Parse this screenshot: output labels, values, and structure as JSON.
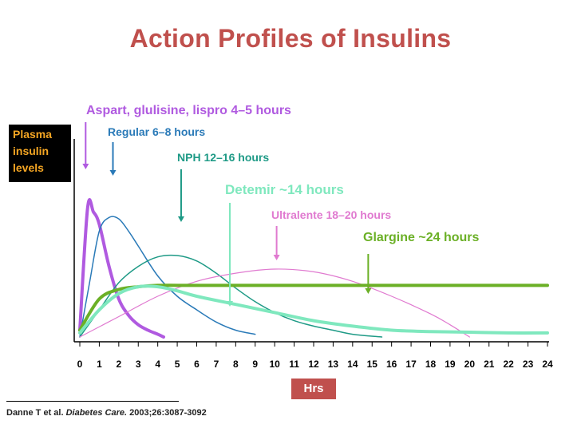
{
  "title": "Action Profiles of Insulins",
  "chart_data": {
    "type": "line",
    "title": "Action Profiles of Insulins",
    "ylabel_lines": [
      "Plasma",
      "insulin",
      "levels"
    ],
    "xlabel": "Hrs",
    "xlim": [
      0,
      24
    ],
    "ylim": [
      0,
      1
    ],
    "x_ticks": [
      "0",
      "1",
      "2",
      "3",
      "4",
      "5",
      "6",
      "7",
      "8",
      "9",
      "10",
      "11",
      "12",
      "13",
      "14",
      "15",
      "16",
      "17",
      "18",
      "19",
      "20",
      "21",
      "22",
      "23",
      "24"
    ],
    "grid": false,
    "series": [
      {
        "name": "Aspart, glulisine, lispro 4–5 hours",
        "color": "#b05ae0",
        "width": 4,
        "points": [
          [
            0,
            0.05
          ],
          [
            0.4,
            0.95
          ],
          [
            0.7,
            0.92
          ],
          [
            1,
            0.83
          ],
          [
            1.5,
            0.52
          ],
          [
            2,
            0.28
          ],
          [
            2.5,
            0.16
          ],
          [
            3,
            0.09
          ],
          [
            3.5,
            0.05
          ],
          [
            4,
            0.02
          ],
          [
            4.3,
            0
          ]
        ]
      },
      {
        "name": "Regular 6–8 hours",
        "color": "#2a7ab8",
        "width": 1.5,
        "points": [
          [
            0,
            0
          ],
          [
            0.5,
            0.4
          ],
          [
            1,
            0.78
          ],
          [
            1.5,
            0.88
          ],
          [
            2,
            0.87
          ],
          [
            2.5,
            0.78
          ],
          [
            3,
            0.67
          ],
          [
            4,
            0.45
          ],
          [
            5,
            0.3
          ],
          [
            6,
            0.2
          ],
          [
            7,
            0.11
          ],
          [
            8,
            0.05
          ],
          [
            9,
            0.02
          ]
        ]
      },
      {
        "name": "NPH 12–16 hours",
        "color": "#1e9a86",
        "width": 1.5,
        "points": [
          [
            0,
            0
          ],
          [
            1,
            0.2
          ],
          [
            2,
            0.4
          ],
          [
            3,
            0.52
          ],
          [
            4,
            0.59
          ],
          [
            5,
            0.6
          ],
          [
            6,
            0.56
          ],
          [
            7,
            0.47
          ],
          [
            8,
            0.36
          ],
          [
            9,
            0.26
          ],
          [
            10,
            0.18
          ],
          [
            11,
            0.12
          ],
          [
            12,
            0.08
          ],
          [
            13,
            0.05
          ],
          [
            14,
            0.02
          ],
          [
            15.5,
            0
          ]
        ]
      },
      {
        "name": "Ultralente 18–20 hours",
        "color": "#e07ad0",
        "width": 1.2,
        "points": [
          [
            0,
            0
          ],
          [
            2,
            0.15
          ],
          [
            4,
            0.3
          ],
          [
            6,
            0.41
          ],
          [
            8,
            0.47
          ],
          [
            10,
            0.5
          ],
          [
            12,
            0.48
          ],
          [
            14,
            0.41
          ],
          [
            16,
            0.3
          ],
          [
            18,
            0.17
          ],
          [
            19,
            0.09
          ],
          [
            20,
            0
          ]
        ]
      },
      {
        "name": "Glargine ~24 hours",
        "color": "#6bb026",
        "width": 4,
        "points": [
          [
            0,
            0.05
          ],
          [
            1,
            0.28
          ],
          [
            2,
            0.35
          ],
          [
            3,
            0.37
          ],
          [
            4,
            0.38
          ],
          [
            6,
            0.38
          ],
          [
            10,
            0.38
          ],
          [
            16,
            0.38
          ],
          [
            20,
            0.38
          ],
          [
            24,
            0.38
          ]
        ]
      },
      {
        "name": "Detemir ~14 hours",
        "color": "#7fe8be",
        "width": 4,
        "points": [
          [
            0,
            0.03
          ],
          [
            1,
            0.2
          ],
          [
            2,
            0.32
          ],
          [
            3,
            0.37
          ],
          [
            4,
            0.37
          ],
          [
            5,
            0.34
          ],
          [
            6,
            0.3
          ],
          [
            8,
            0.24
          ],
          [
            10,
            0.18
          ],
          [
            12,
            0.12
          ],
          [
            14,
            0.08
          ],
          [
            16,
            0.05
          ],
          [
            18,
            0.04
          ],
          [
            20,
            0.035
          ],
          [
            22,
            0.03
          ],
          [
            24,
            0.03
          ]
        ]
      }
    ],
    "annotations": [
      {
        "text": "Aspart, glulisine, lispro 4–5 hours",
        "color": "#b05ae0",
        "arrow_x": 0.3
      },
      {
        "text": "Regular 6–8 hours",
        "color": "#2a7ab8",
        "arrow_x": 1.7
      },
      {
        "text": "NPH 12–16 hours",
        "color": "#1e9a86",
        "arrow_x": 5.2
      },
      {
        "text": "Detemir ~14 hours",
        "color": "#7fe8be",
        "arrow_x": 7.7
      },
      {
        "text": "Ultralente 18–20 hours",
        "color": "#e07ad0",
        "arrow_x": 10.1
      },
      {
        "text": "Glargine ~24 hours",
        "color": "#6bb026",
        "arrow_x": 14.8
      }
    ]
  },
  "citation": {
    "authors": "Danne T et al.",
    "journal": "Diabetes Care.",
    "ref": "2003;26:3087-3092"
  }
}
